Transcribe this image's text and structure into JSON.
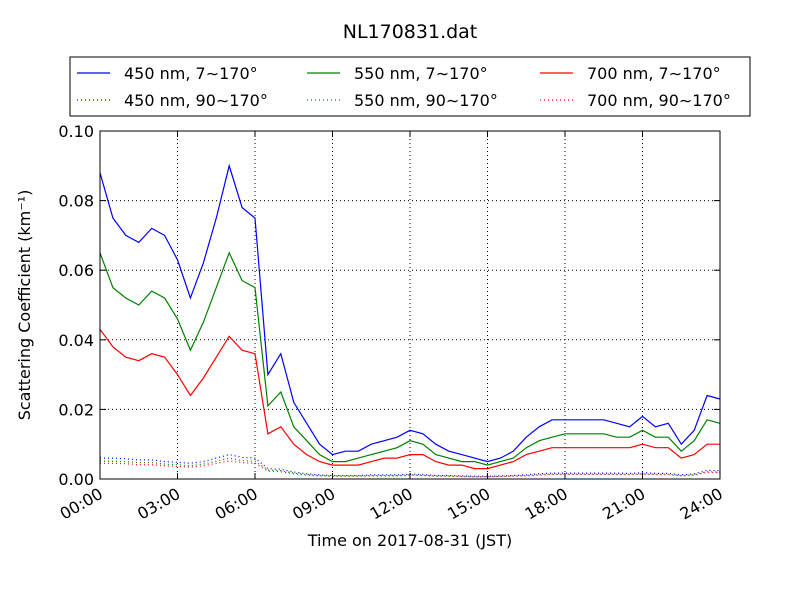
{
  "chart_data": {
    "type": "line",
    "title": "NL170831.dat",
    "x_label": "Time on 2017-08-31 (JST)",
    "y_label": "Scattering Coefficient (km⁻¹)",
    "x": [
      "00:00",
      "00:30",
      "01:00",
      "01:30",
      "02:00",
      "02:30",
      "03:00",
      "03:30",
      "04:00",
      "04:30",
      "05:00",
      "05:30",
      "06:00",
      "06:30",
      "07:00",
      "07:30",
      "08:00",
      "08:30",
      "09:00",
      "09:30",
      "10:00",
      "10:30",
      "11:00",
      "11:30",
      "12:00",
      "12:30",
      "13:00",
      "13:30",
      "14:00",
      "14:30",
      "15:00",
      "15:30",
      "16:00",
      "16:30",
      "17:00",
      "17:30",
      "18:00",
      "18:30",
      "19:00",
      "19:30",
      "20:00",
      "20:30",
      "21:00",
      "21:30",
      "22:00",
      "22:30",
      "23:00",
      "23:30",
      "24:00"
    ],
    "xlim": [
      "00:00",
      "24:00"
    ],
    "xticks": [
      "00:00",
      "03:00",
      "06:00",
      "09:00",
      "12:00",
      "15:00",
      "18:00",
      "21:00",
      "24:00"
    ],
    "ylim": [
      0,
      0.1
    ],
    "yticks": [
      {
        "value": 0,
        "label": "0.00"
      },
      {
        "value": 0.02,
        "label": "0.02"
      },
      {
        "value": 0.04,
        "label": "0.04"
      },
      {
        "value": 0.06,
        "label": "0.06"
      },
      {
        "value": 0.08,
        "label": "0.08"
      },
      {
        "value": 0.1,
        "label": "0.10"
      }
    ],
    "grid": true,
    "legend": "top",
    "series": [
      {
        "name": "450 nm, 7∼170°",
        "color": "#0000ff",
        "style": "solid",
        "values": [
          0.088,
          0.075,
          0.07,
          0.068,
          0.072,
          0.07,
          0.063,
          0.052,
          0.062,
          0.075,
          0.09,
          0.078,
          0.075,
          0.03,
          0.036,
          0.022,
          0.016,
          0.01,
          0.007,
          0.008,
          0.008,
          0.01,
          0.011,
          0.012,
          0.014,
          0.013,
          0.01,
          0.008,
          0.007,
          0.006,
          0.005,
          0.006,
          0.008,
          0.012,
          0.015,
          0.017,
          0.017,
          0.017,
          0.017,
          0.017,
          0.016,
          0.015,
          0.018,
          0.015,
          0.016,
          0.01,
          0.014,
          0.024,
          0.023
        ]
      },
      {
        "name": "550 nm, 7∼170°",
        "color": "#008000",
        "style": "solid",
        "values": [
          0.065,
          0.055,
          0.052,
          0.05,
          0.054,
          0.052,
          0.046,
          0.037,
          0.045,
          0.055,
          0.065,
          0.057,
          0.055,
          0.021,
          0.025,
          0.015,
          0.011,
          0.007,
          0.005,
          0.005,
          0.006,
          0.007,
          0.008,
          0.009,
          0.011,
          0.01,
          0.007,
          0.006,
          0.005,
          0.005,
          0.004,
          0.005,
          0.006,
          0.009,
          0.011,
          0.012,
          0.013,
          0.013,
          0.013,
          0.013,
          0.012,
          0.012,
          0.014,
          0.012,
          0.012,
          0.008,
          0.011,
          0.017,
          0.016
        ]
      },
      {
        "name": "700 nm, 7∼170°",
        "color": "#ff0000",
        "style": "solid",
        "values": [
          0.043,
          0.038,
          0.035,
          0.034,
          0.036,
          0.035,
          0.03,
          0.024,
          0.029,
          0.035,
          0.041,
          0.037,
          0.036,
          0.013,
          0.015,
          0.01,
          0.007,
          0.005,
          0.004,
          0.004,
          0.004,
          0.005,
          0.006,
          0.006,
          0.007,
          0.007,
          0.005,
          0.004,
          0.004,
          0.003,
          0.003,
          0.004,
          0.005,
          0.007,
          0.008,
          0.009,
          0.009,
          0.009,
          0.009,
          0.009,
          0.009,
          0.009,
          0.01,
          0.009,
          0.009,
          0.006,
          0.007,
          0.01,
          0.01
        ]
      },
      {
        "name": "450 nm, 90∼170°",
        "color": "#0000ff",
        "style": "dotted",
        "values": [
          0.006,
          0.006,
          0.0058,
          0.0055,
          0.0055,
          0.005,
          0.0048,
          0.0045,
          0.005,
          0.006,
          0.007,
          0.0062,
          0.006,
          0.003,
          0.0028,
          0.002,
          0.0015,
          0.0012,
          0.001,
          0.001,
          0.001,
          0.0012,
          0.0012,
          0.0012,
          0.0014,
          0.0013,
          0.001,
          0.001,
          0.0009,
          0.0008,
          0.0008,
          0.0009,
          0.001,
          0.0012,
          0.0015,
          0.0017,
          0.0017,
          0.0017,
          0.0017,
          0.0017,
          0.0017,
          0.0016,
          0.0018,
          0.0016,
          0.0016,
          0.0012,
          0.0015,
          0.0025,
          0.0024
        ]
      },
      {
        "name": "550 nm, 90∼170°",
        "color": "#008000",
        "style": "dotted",
        "values": [
          0.0052,
          0.0051,
          0.005,
          0.0047,
          0.0047,
          0.0043,
          0.0041,
          0.0038,
          0.0043,
          0.0051,
          0.006,
          0.0053,
          0.0051,
          0.0026,
          0.0024,
          0.0017,
          0.0013,
          0.001,
          0.0009,
          0.0009,
          0.0009,
          0.001,
          0.001,
          0.001,
          0.0012,
          0.0011,
          0.0009,
          0.0009,
          0.0008,
          0.0007,
          0.0007,
          0.0008,
          0.0009,
          0.001,
          0.0013,
          0.0014,
          0.0014,
          0.0014,
          0.0014,
          0.0014,
          0.0014,
          0.0014,
          0.0015,
          0.0014,
          0.0014,
          0.001,
          0.0013,
          0.0021,
          0.002
        ]
      },
      {
        "name": "700 nm, 90∼170°",
        "color": "#ff0000",
        "style": "dotted",
        "values": [
          0.0045,
          0.0045,
          0.0044,
          0.0041,
          0.0041,
          0.0038,
          0.0036,
          0.0034,
          0.0038,
          0.0045,
          0.0052,
          0.0047,
          0.0045,
          0.0023,
          0.0021,
          0.0015,
          0.0011,
          0.0009,
          0.0008,
          0.0008,
          0.0008,
          0.0009,
          0.0009,
          0.0009,
          0.0011,
          0.001,
          0.0008,
          0.0008,
          0.0007,
          0.0006,
          0.0006,
          0.0007,
          0.0008,
          0.0009,
          0.0011,
          0.0013,
          0.0013,
          0.0013,
          0.0013,
          0.0013,
          0.0013,
          0.0012,
          0.0014,
          0.0012,
          0.0012,
          0.0009,
          0.0011,
          0.0019,
          0.0018
        ]
      }
    ]
  }
}
